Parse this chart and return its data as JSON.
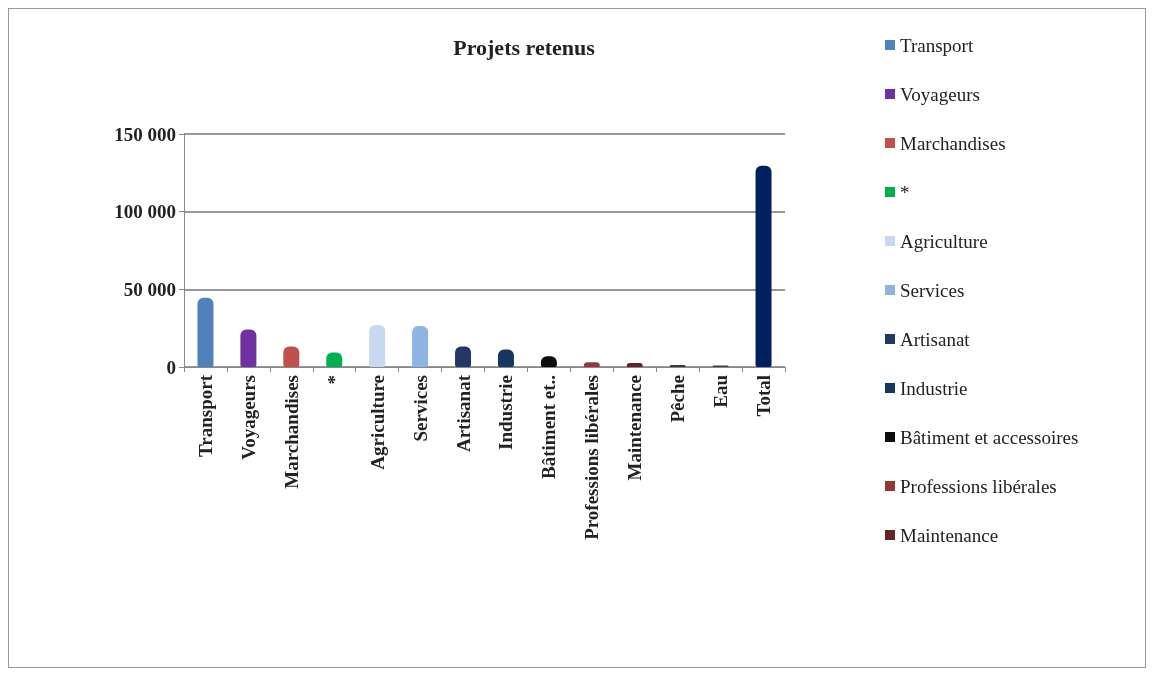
{
  "chart_data": {
    "type": "bar",
    "title": "Projets retenus",
    "categories": [
      "Transport",
      "Voyageurs",
      "Marchandises",
      "*",
      "Agriculture",
      "Services",
      "Artisanat",
      "Industrie",
      "Bâtiment et..",
      "Professions libérales",
      "Maintenance",
      "Pêche",
      "Eau",
      "Total"
    ],
    "series": [
      {
        "name": "Transport",
        "color": "#4f81bd",
        "values": [
          44600,
          null,
          null,
          null,
          null,
          null,
          null,
          null,
          null,
          null,
          null,
          null,
          null,
          null
        ]
      },
      {
        "name": "Voyageurs",
        "color": "#7030a0",
        "values": [
          null,
          24200,
          null,
          null,
          null,
          null,
          null,
          null,
          null,
          null,
          null,
          null,
          null,
          null
        ]
      },
      {
        "name": "Marchandises",
        "color": "#c0504d",
        "values": [
          null,
          null,
          13200,
          null,
          null,
          null,
          null,
          null,
          null,
          null,
          null,
          null,
          null,
          null
        ]
      },
      {
        "name": "*",
        "color": "#00b050",
        "values": [
          null,
          null,
          null,
          9400,
          null,
          null,
          null,
          null,
          null,
          null,
          null,
          null,
          null,
          null
        ]
      },
      {
        "name": "Agriculture",
        "color": "#c6d9f1",
        "values": [
          null,
          null,
          null,
          null,
          27000,
          null,
          null,
          null,
          null,
          null,
          null,
          null,
          null,
          null
        ]
      },
      {
        "name": "Services",
        "color": "#8eb4e3",
        "values": [
          null,
          null,
          null,
          null,
          null,
          26400,
          null,
          null,
          null,
          null,
          null,
          null,
          null,
          null
        ]
      },
      {
        "name": "Artisanat",
        "color": "#1f3864",
        "values": [
          null,
          null,
          null,
          null,
          null,
          null,
          13200,
          null,
          null,
          null,
          null,
          null,
          null,
          null
        ]
      },
      {
        "name": "Industrie",
        "color": "#17375e",
        "values": [
          null,
          null,
          null,
          null,
          null,
          null,
          null,
          11300,
          null,
          null,
          null,
          null,
          null,
          null
        ]
      },
      {
        "name": "Bâtiment et accessoires",
        "color": "#0d0d0d",
        "values": [
          null,
          null,
          null,
          null,
          null,
          null,
          null,
          null,
          6900,
          null,
          null,
          null,
          null,
          null
        ]
      },
      {
        "name": "Professions libérales",
        "color": "#953735",
        "values": [
          null,
          null,
          null,
          null,
          null,
          null,
          null,
          null,
          null,
          3100,
          null,
          null,
          null,
          null
        ]
      },
      {
        "name": "Maintenance",
        "color": "#632523",
        "values": [
          null,
          null,
          null,
          null,
          null,
          null,
          null,
          null,
          null,
          null,
          2500,
          null,
          null,
          null
        ]
      },
      {
        "color": "#3b3b3b",
        "values": [
          null,
          null,
          null,
          null,
          null,
          null,
          null,
          null,
          null,
          null,
          null,
          1300,
          null,
          null
        ]
      },
      {
        "color": "#404040",
        "values": [
          null,
          null,
          null,
          null,
          null,
          null,
          null,
          null,
          null,
          null,
          null,
          null,
          1000,
          null
        ]
      },
      {
        "color": "#002060",
        "values": [
          null,
          null,
          null,
          null,
          null,
          null,
          null,
          null,
          null,
          null,
          null,
          null,
          null,
          129600
        ]
      }
    ],
    "stacked": true,
    "ylim": [
      0,
      150000
    ],
    "yticks": [
      {
        "value": 0,
        "label": "0"
      },
      {
        "value": 50000,
        "label": "50 000"
      },
      {
        "value": 100000,
        "label": "100 000"
      },
      {
        "value": 150000,
        "label": "150 000"
      }
    ],
    "grid": "y",
    "legend": "right"
  }
}
